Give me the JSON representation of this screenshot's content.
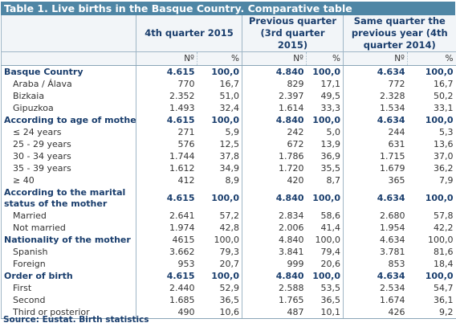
{
  "title": "Table 1. Live births in the Basque Country. Comparative table",
  "headers": {
    "q1": "4th quarter 2015",
    "q2": "Previous quarter (3rd quarter 2015)",
    "q3": "Same quarter the previous year (4th quarter 2014)",
    "n": "Nº",
    "pct": "%"
  },
  "rows": [
    {
      "type": "sec",
      "label": "Basque Country",
      "v": [
        "4.615",
        "100,0",
        "4.840",
        "100,0",
        "4.634",
        "100,0"
      ]
    },
    {
      "type": "sub",
      "label": "Araba / Álava",
      "v": [
        "770",
        "16,7",
        "829",
        "17,1",
        "772",
        "16,7"
      ]
    },
    {
      "type": "sub",
      "label": "Bizkaia",
      "v": [
        "2.352",
        "51,0",
        "2.397",
        "49,5",
        "2.328",
        "50,2"
      ]
    },
    {
      "type": "sub",
      "label": "Gipuzkoa",
      "v": [
        "1.493",
        "32,4",
        "1.614",
        "33,3",
        "1.534",
        "33,1"
      ]
    },
    {
      "type": "sec",
      "label": "According to age of mother",
      "v": [
        "4.615",
        "100,0",
        "4.840",
        "100,0",
        "4.634",
        "100,0"
      ]
    },
    {
      "type": "sub",
      "label": "≤ 24 years",
      "v": [
        "271",
        "5,9",
        "242",
        "5,0",
        "244",
        "5,3"
      ]
    },
    {
      "type": "sub",
      "label": "25 - 29 years",
      "v": [
        "576",
        "12,5",
        "672",
        "13,9",
        "631",
        "13,6"
      ]
    },
    {
      "type": "sub",
      "label": "30 - 34 years",
      "v": [
        "1.744",
        "37,8",
        "1.786",
        "36,9",
        "1.715",
        "37,0"
      ]
    },
    {
      "type": "sub",
      "label": "35 - 39 years",
      "v": [
        "1.612",
        "34,9",
        "1.720",
        "35,5",
        "1.679",
        "36,2"
      ]
    },
    {
      "type": "sub",
      "label": "≥ 40",
      "v": [
        "412",
        "8,9",
        "420",
        "8,7",
        "365",
        "7,9"
      ]
    },
    {
      "type": "sec-tall",
      "label": "According to the marital status of the mother",
      "v": [
        "4.615",
        "100,0",
        "4.840",
        "100,0",
        "4.634",
        "100,0"
      ]
    },
    {
      "type": "sub",
      "label": "Married",
      "v": [
        "2.641",
        "57,2",
        "2.834",
        "58,6",
        "2.680",
        "57,8"
      ]
    },
    {
      "type": "sub",
      "label": "Not married",
      "v": [
        "1.974",
        "42,8",
        "2.006",
        "41,4",
        "1.954",
        "42,2"
      ]
    },
    {
      "type": "sec-plainnum",
      "label": "Nationality of the mother",
      "v": [
        "4615",
        "100,0",
        "4.840",
        "100,0",
        "4.634",
        "100,0"
      ]
    },
    {
      "type": "sub",
      "label": "Spanish",
      "v": [
        "3.662",
        "79,3",
        "3.841",
        "79,4",
        "3.781",
        "81,6"
      ]
    },
    {
      "type": "sub",
      "label": "Foreign",
      "v": [
        "953",
        "20,7",
        "999",
        "20,6",
        "853",
        "18,4"
      ]
    },
    {
      "type": "sec",
      "label": "Order of birth",
      "v": [
        "4.615",
        "100,0",
        "4.840",
        "100,0",
        "4.634",
        "100,0"
      ]
    },
    {
      "type": "sub",
      "label": "First",
      "v": [
        "2.440",
        "52,9",
        "2.588",
        "53,5",
        "2.534",
        "54,7"
      ]
    },
    {
      "type": "sub",
      "label": "Second",
      "v": [
        "1.685",
        "36,5",
        "1.765",
        "36,5",
        "1.674",
        "36,1"
      ]
    },
    {
      "type": "sub",
      "label": "Third or posterior",
      "v": [
        "490",
        "10,6",
        "487",
        "10,1",
        "426",
        "9,2"
      ]
    }
  ],
  "source": "Source: Eustat. Birth statistics",
  "colors": {
    "title_bg": "#4f86a5",
    "header_text": "#1a3e6d",
    "header_bg": "#f2f5f8",
    "rule": "#9fb6c6"
  }
}
